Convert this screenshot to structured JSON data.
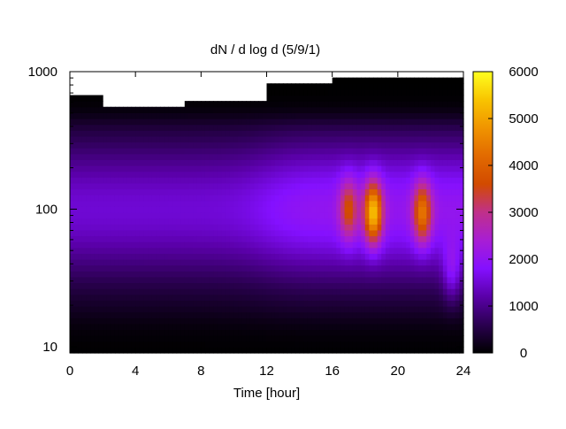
{
  "chart_data": {
    "type": "heatmap",
    "title": "dN / d log d (5/9/1)",
    "xlabel": "Time [hour]",
    "ylabel": "",
    "xlim": [
      0,
      24
    ],
    "ylim": [
      9,
      1000
    ],
    "y_scale": "log",
    "x_ticks": [
      0,
      4,
      8,
      12,
      16,
      20,
      24
    ],
    "y_ticks": [
      10,
      100,
      1000
    ],
    "colorbar": {
      "range": [
        0,
        6000
      ],
      "ticks": [
        0,
        1000,
        2000,
        3000,
        4000,
        5000,
        6000
      ],
      "colormap": "gnuplot (black-purple-red-yellow)"
    },
    "peaks": [
      {
        "time": 17.0,
        "diameter": 100,
        "value": 3500
      },
      {
        "time": 18.5,
        "diameter": 95,
        "value": 5200
      },
      {
        "time": 21.5,
        "diameter": 95,
        "value": 4200
      },
      {
        "time": 23.3,
        "diameter": 35,
        "value": 2700
      }
    ],
    "grid": false,
    "legend": "none"
  }
}
